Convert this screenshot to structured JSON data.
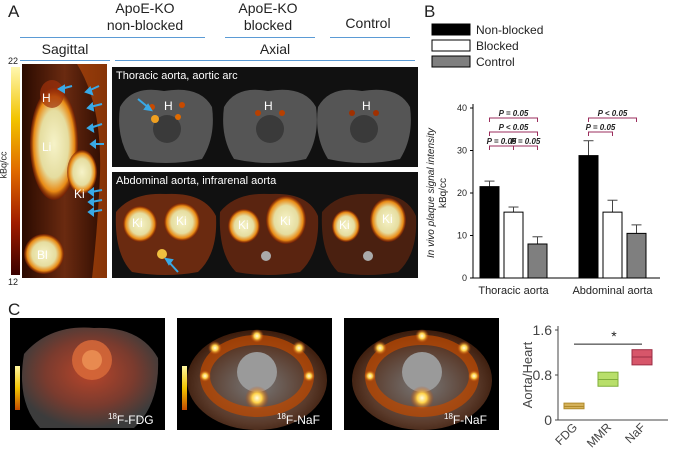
{
  "panels": {
    "A": {
      "letter": "A",
      "cols": [
        "ApoE-KO non-blocked",
        "ApoE-KO blocked",
        "Control"
      ],
      "col1_line1": "ApoE-KO",
      "col1_line2": "non-blocked",
      "col2_line1": "ApoE-KO",
      "col2_line2": "blocked",
      "col3_line1": "Control",
      "view_sagittal": "Sagittal",
      "view_axial": "Axial",
      "scale_max": "22",
      "scale_min": "12",
      "scale_unit": "kBq/cc",
      "row1_caption": "Thoracic aorta, aortic arc",
      "row2_caption": "Abdominal aorta, infrarenal aorta",
      "labels": {
        "H": "H",
        "Li": "Li",
        "Ki": "Ki",
        "Bl": "Bl"
      }
    },
    "B": {
      "letter": "B"
    },
    "C": {
      "letter": "C",
      "tracers": [
        {
          "sup": "18",
          "name": "F-FDG"
        },
        {
          "sup": "18",
          "name": "F-NaF"
        },
        {
          "sup": "18",
          "name": "F-NaF"
        }
      ]
    }
  },
  "chart_data": [
    {
      "type": "bar",
      "ylabel": "In vivo plaque signal intensity kBq/cc",
      "ylabel_line1": "In vivo plaque signal intensity",
      "ylabel_line2": "kBq/cc",
      "ylim": [
        0,
        40
      ],
      "yticks": [
        0,
        10,
        20,
        30,
        40
      ],
      "categories": [
        "Thoracic aorta",
        "Abdominal aorta"
      ],
      "series": [
        {
          "name": "Non-blocked",
          "color": "#000000",
          "values": [
            21.5,
            28.8
          ],
          "errors": [
            1.3,
            3.5
          ]
        },
        {
          "name": "Blocked",
          "color": "#ffffff",
          "values": [
            15.5,
            15.5
          ],
          "errors": [
            1.2,
            2.8
          ]
        },
        {
          "name": "Control",
          "color": "#7f7f7f",
          "values": [
            8.0,
            10.5
          ],
          "errors": [
            1.7,
            2.0
          ]
        }
      ],
      "legend_position": "top",
      "annotations": [
        {
          "text": "P = 0.05",
          "group": 0,
          "from": 0,
          "to": 2,
          "level": 3
        },
        {
          "text": "P < 0.05",
          "group": 0,
          "from": 0,
          "to": 2,
          "level": 2
        },
        {
          "text": "P = 0.05",
          "group": 0,
          "from": 0,
          "to": 1,
          "level": 1
        },
        {
          "text": "P = 0.05",
          "group": 0,
          "from": 1,
          "to": 2,
          "level": 1
        },
        {
          "text": "P < 0.05",
          "group": 1,
          "from": 0,
          "to": 2,
          "level": 3
        },
        {
          "text": "P = 0.05",
          "group": 1,
          "from": 0,
          "to": 1,
          "level": 2
        }
      ],
      "grid": false
    },
    {
      "type": "box",
      "ylabel": "Aorta/Heart",
      "ylim": [
        0,
        1.6
      ],
      "yticks": [
        "0",
        "0.8",
        "1.6"
      ],
      "yvals": [
        0,
        0.8,
        1.6
      ],
      "categories": [
        "FDG",
        "MMR",
        "NaF"
      ],
      "boxes": [
        {
          "name": "FDG",
          "low": 0.2,
          "median": 0.24,
          "high": 0.3,
          "color": "#d4b15a",
          "edge": "#b08a2a"
        },
        {
          "name": "MMR",
          "low": 0.6,
          "median": 0.72,
          "high": 0.85,
          "color": "#b8df6a",
          "edge": "#7fae3a"
        },
        {
          "name": "NaF",
          "low": 0.98,
          "median": 1.12,
          "high": 1.25,
          "color": "#d7566a",
          "edge": "#9b2d44"
        }
      ],
      "annotation": "*",
      "grid": false
    }
  ]
}
